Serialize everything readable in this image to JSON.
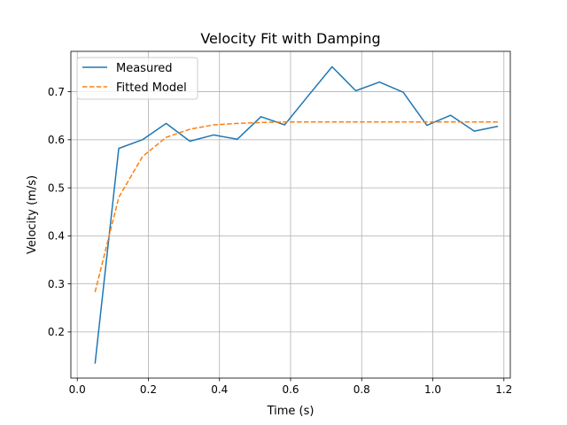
{
  "chart_data": {
    "type": "line",
    "title": "Velocity Fit with Damping",
    "xlabel": "Time (s)",
    "ylabel": "Velocity (m/s)",
    "xlim": [
      -0.018,
      1.218
    ],
    "ylim": [
      0.104,
      0.784
    ],
    "xticks": [
      0.0,
      0.2,
      0.4,
      0.6,
      0.8,
      1.0,
      1.2
    ],
    "xtick_labels": [
      "0.0",
      "0.2",
      "0.4",
      "0.6",
      "0.8",
      "1.0",
      "1.2"
    ],
    "yticks": [
      0.2,
      0.3,
      0.4,
      0.5,
      0.6,
      0.7
    ],
    "ytick_labels": [
      "0.2",
      "0.3",
      "0.4",
      "0.5",
      "0.6",
      "0.7"
    ],
    "grid": true,
    "legend_position": "top-left",
    "series": [
      {
        "name": "Measured",
        "color": "#1f77b4",
        "style": "solid",
        "x": [
          0.05,
          0.1167,
          0.1833,
          0.25,
          0.3167,
          0.3833,
          0.45,
          0.5167,
          0.5833,
          0.65,
          0.7167,
          0.7833,
          0.85,
          0.9167,
          0.9833,
          1.05,
          1.1167,
          1.1833
        ],
        "y": [
          0.134,
          0.582,
          0.6,
          0.634,
          0.597,
          0.61,
          0.601,
          0.648,
          0.631,
          0.692,
          0.752,
          0.702,
          0.72,
          0.699,
          0.63,
          0.651,
          0.618,
          0.628
        ]
      },
      {
        "name": "Fitted Model",
        "color": "#ff7f0e",
        "style": "dashed",
        "x": [
          0.05,
          0.1167,
          0.1833,
          0.25,
          0.3167,
          0.3833,
          0.45,
          0.5167,
          0.5833,
          0.65,
          0.7167,
          0.7833,
          0.85,
          0.9167,
          0.9833,
          1.05,
          1.1167,
          1.1833
        ],
        "y": [
          0.283,
          0.48,
          0.565,
          0.605,
          0.622,
          0.631,
          0.634,
          0.636,
          0.637,
          0.637,
          0.637,
          0.637,
          0.637,
          0.637,
          0.637,
          0.637,
          0.637,
          0.637
        ]
      }
    ]
  }
}
